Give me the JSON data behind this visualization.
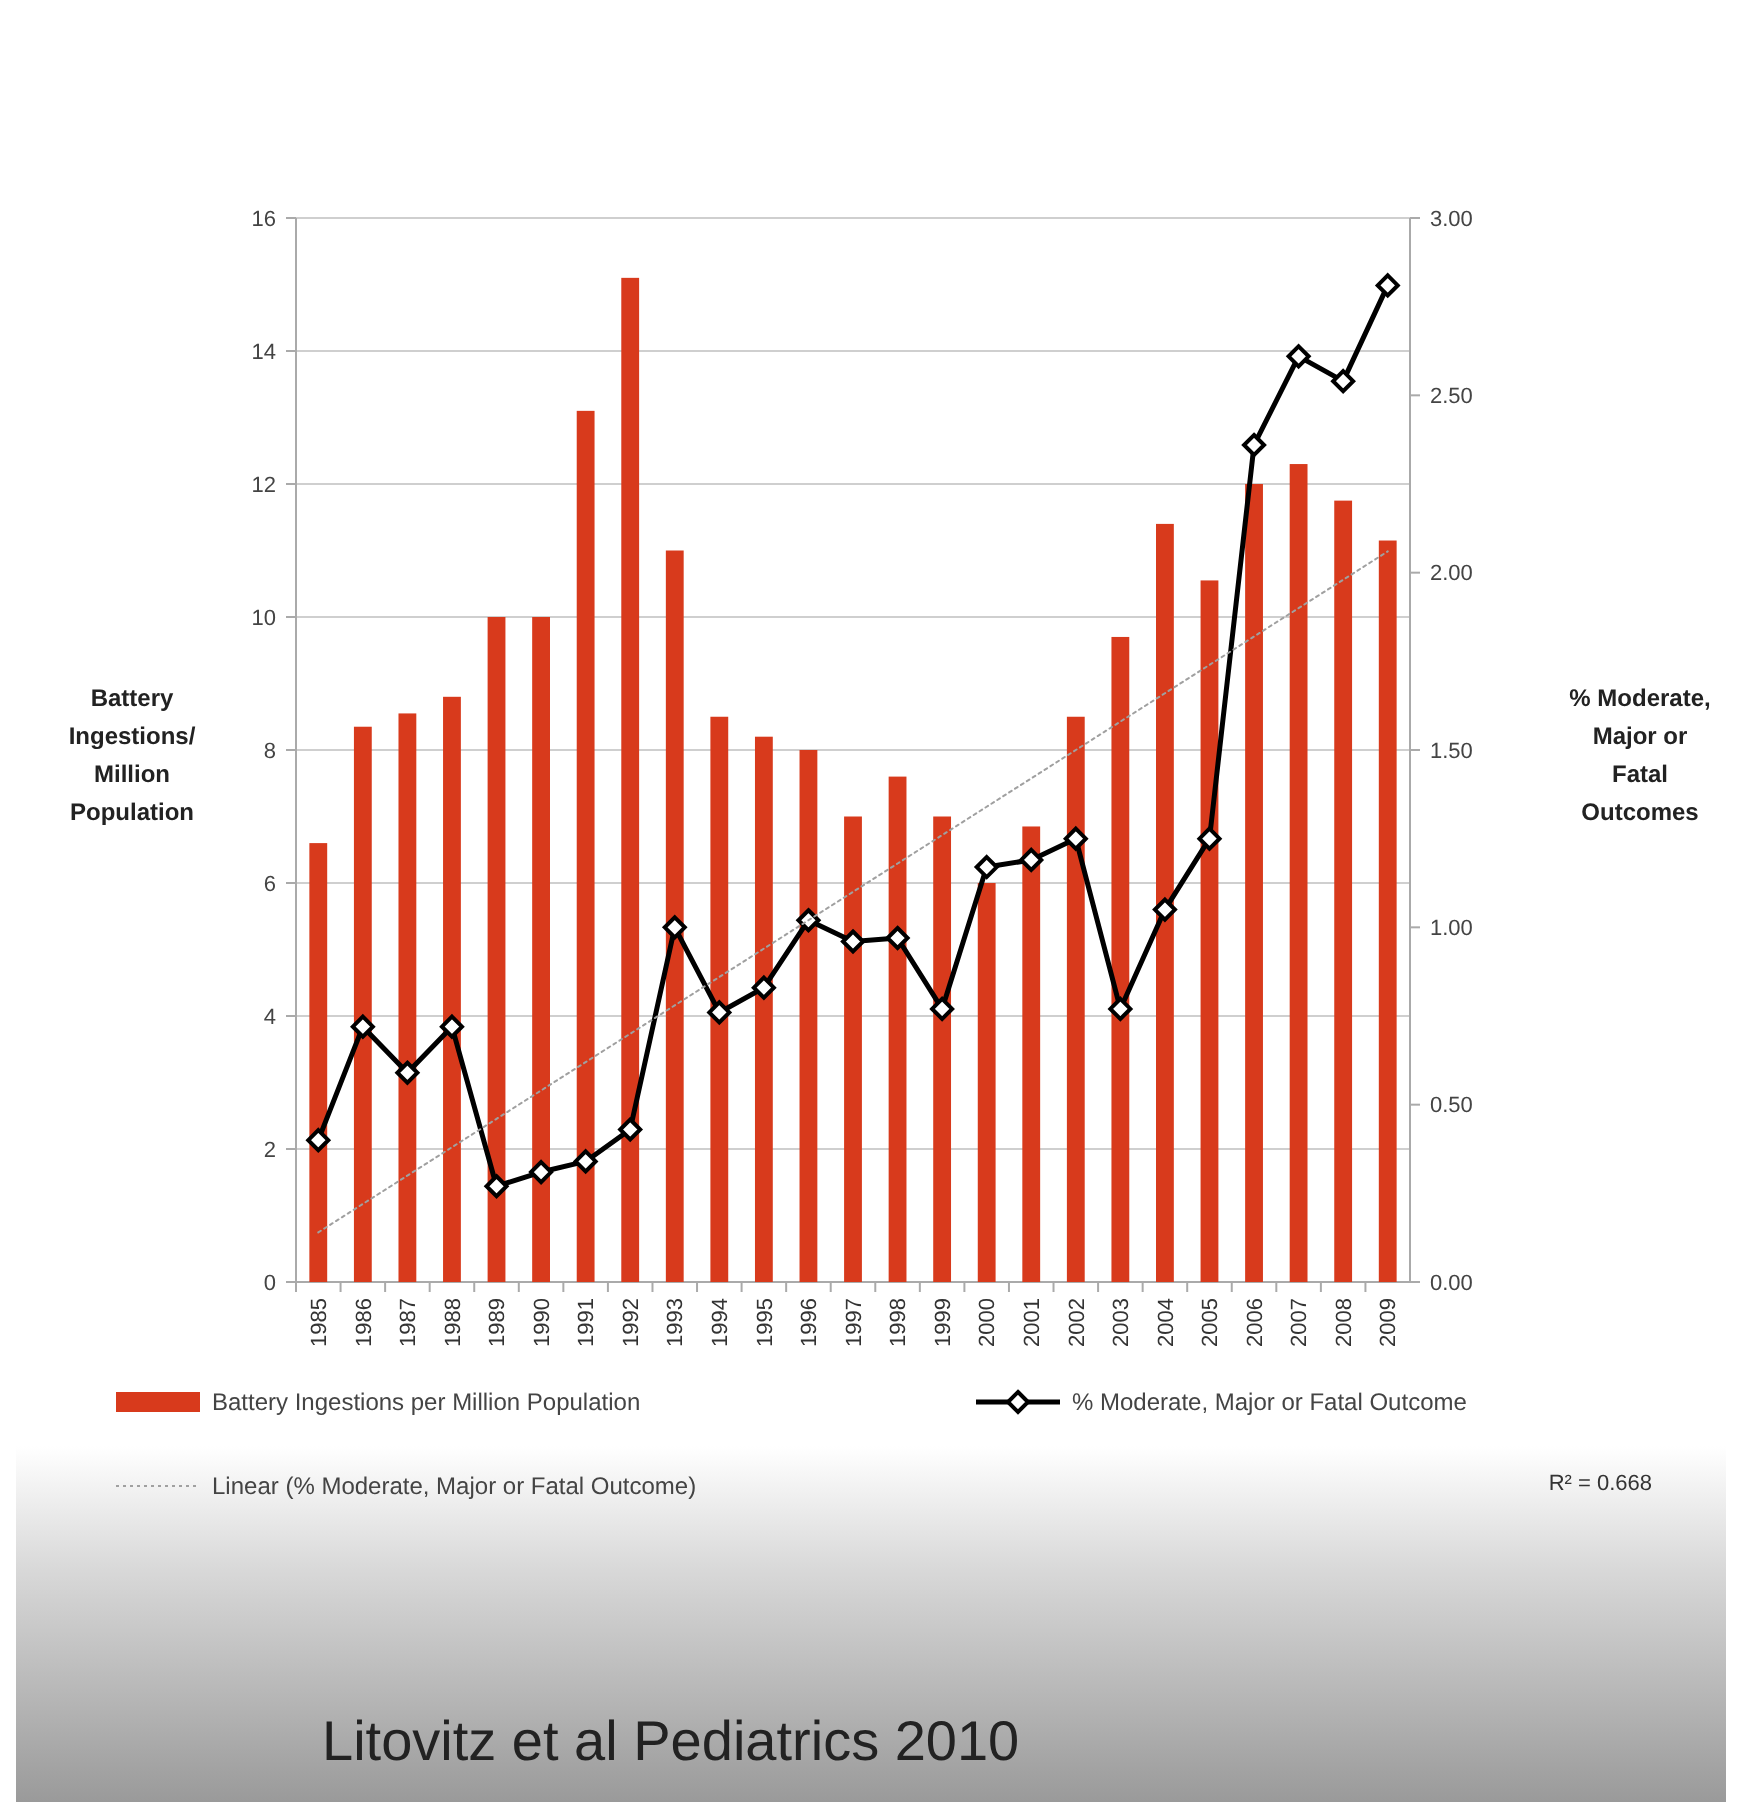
{
  "chart_data": {
    "type": "bar",
    "ylabel": "Battery Ingestions/ Million Population",
    "y2label": "% Moderate, Major or Fatal Outcomes",
    "categories": [
      "1985",
      "1986",
      "1987",
      "1988",
      "1989",
      "1990",
      "1991",
      "1992",
      "1993",
      "1994",
      "1995",
      "1996",
      "1997",
      "1998",
      "1999",
      "2000",
      "2001",
      "2002",
      "2003",
      "2004",
      "2005",
      "2006",
      "2007",
      "2008",
      "2009"
    ],
    "series": [
      {
        "name": "Battery Ingestions per Million Population",
        "color": "#d83a1c",
        "values": [
          6.6,
          8.35,
          8.55,
          8.8,
          10,
          10,
          13.1,
          15.1,
          11,
          8.5,
          8.2,
          8,
          7,
          7.6,
          7,
          6,
          6.85,
          8.5,
          9.7,
          11.4,
          10.55,
          12,
          12.3,
          11.75,
          11.15
        ]
      },
      {
        "name": "% Moderate, Major or Fatal Outcome",
        "type": "line",
        "axis": "y2",
        "color": "#000000",
        "marker": "diamond",
        "line_style": "solid",
        "values": [
          0.4,
          0.72,
          0.59,
          0.72,
          0.27,
          0.31,
          0.34,
          0.43,
          1,
          0.76,
          0.83,
          1.02,
          0.96,
          0.97,
          0.77,
          1.17,
          1.19,
          1.25,
          0.77,
          1.05,
          1.25,
          2.36,
          2.61,
          2.54,
          2.81
        ]
      },
      {
        "name": "Linear (% Moderate, Major or Fatal Outcome)",
        "type": "line",
        "axis": "y2",
        "color": "#a0a0a0",
        "marker": "none",
        "line_style": "dotted",
        "values": [
          0.14,
          0.22,
          0.3,
          0.38,
          0.46,
          0.54,
          0.62,
          0.7,
          0.78,
          0.86,
          0.94,
          1.02,
          1.1,
          1.18,
          1.26,
          1.34,
          1.42,
          1.5,
          1.58,
          1.66,
          1.74,
          1.82,
          1.9,
          1.98,
          2.06
        ]
      }
    ],
    "ylim": [
      0,
      16
    ],
    "yticks": [
      0,
      2,
      4,
      6,
      8,
      10,
      12,
      14,
      16
    ],
    "y2lim": [
      0,
      3
    ],
    "y2ticks": [
      {
        "value": 0,
        "label": "0.00"
      },
      {
        "value": 0.5,
        "label": "0.50"
      },
      {
        "value": 1,
        "label": "1.00"
      },
      {
        "value": 1.5,
        "label": "1.50"
      },
      {
        "value": 2,
        "label": "2.00"
      },
      {
        "value": 2.5,
        "label": "2.50"
      },
      {
        "value": 3,
        "label": "3.00"
      }
    ],
    "grid": "y",
    "legend": "bottom",
    "annotations": [
      "R² = 0.668",
      "Litovitz et al Pediatrics 2010"
    ]
  }
}
